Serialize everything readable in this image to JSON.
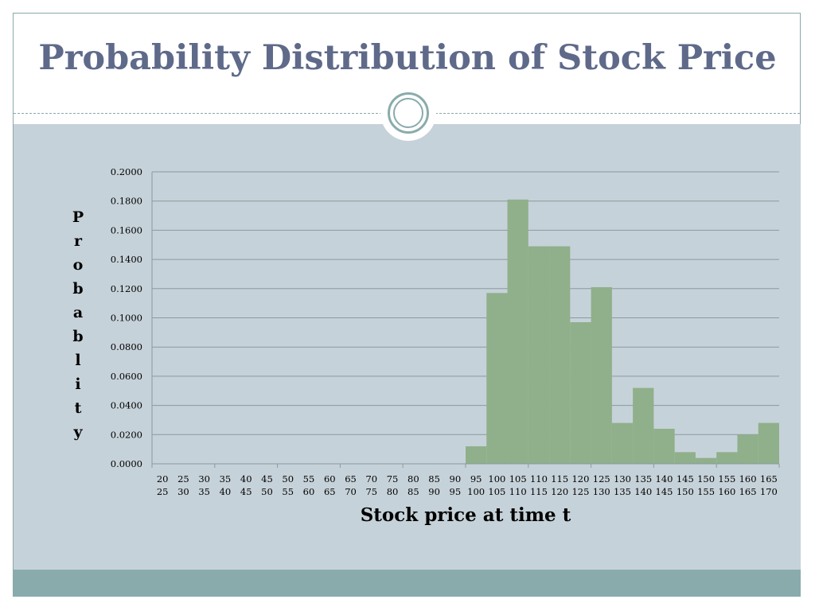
{
  "slide": {
    "title": "Probability Distribution of Stock Price"
  },
  "colors": {
    "title": "#5f6a8a",
    "panel": "#c6d2d9",
    "footer": "#8aabac",
    "bar": "#8fb08a",
    "grid": "#8a9aa0"
  },
  "chart_data": {
    "type": "bar",
    "title": "",
    "xlabel": "Stock price at time t",
    "ylabel": "Probablity",
    "ylim": [
      0,
      0.2
    ],
    "yticks": [
      "0.0000",
      "0.0200",
      "0.0400",
      "0.0600",
      "0.0800",
      "0.1000",
      "0.1200",
      "0.1400",
      "0.1600",
      "0.1800",
      "0.2000"
    ],
    "grid": true,
    "legend": "none",
    "categories": [
      "20-25",
      "25-30",
      "30-35",
      "35-40",
      "40-45",
      "45-50",
      "50-55",
      "55-60",
      "60-65",
      "65-70",
      "70-75",
      "75-80",
      "80-85",
      "85-90",
      "90-95",
      "95-100",
      "100-105",
      "105-110",
      "110-115",
      "115-120",
      "120-125",
      "125-130",
      "130-135",
      "135-140",
      "140-145",
      "145-150",
      "150-155",
      "155-160",
      "160-165",
      "165-170"
    ],
    "category_lines": [
      [
        "20",
        "25"
      ],
      [
        "25",
        "30"
      ],
      [
        "30",
        "35"
      ],
      [
        "35",
        "40"
      ],
      [
        "40",
        "45"
      ],
      [
        "45",
        "50"
      ],
      [
        "50",
        "55"
      ],
      [
        "55",
        "60"
      ],
      [
        "60",
        "65"
      ],
      [
        "65",
        "70"
      ],
      [
        "70",
        "75"
      ],
      [
        "75",
        "80"
      ],
      [
        "80",
        "85"
      ],
      [
        "85",
        "90"
      ],
      [
        "90",
        "95"
      ],
      [
        "95",
        "100"
      ],
      [
        "100",
        "105"
      ],
      [
        "105",
        "110"
      ],
      [
        "110",
        "115"
      ],
      [
        "115",
        "120"
      ],
      [
        "120",
        "125"
      ],
      [
        "125",
        "130"
      ],
      [
        "130",
        "135"
      ],
      [
        "135",
        "140"
      ],
      [
        "140",
        "145"
      ],
      [
        "145",
        "150"
      ],
      [
        "150",
        "155"
      ],
      [
        "155",
        "160"
      ],
      [
        "160",
        "165"
      ],
      [
        "165",
        "170"
      ]
    ],
    "values": [
      0,
      0,
      0,
      0,
      0,
      0,
      0,
      0,
      0,
      0,
      0,
      0,
      0,
      0,
      0,
      0.012,
      0.117,
      0.181,
      0.149,
      0.149,
      0.097,
      0.121,
      0.028,
      0.052,
      0.024,
      0.008,
      0.004,
      0.008,
      0.02,
      0.028
    ]
  }
}
